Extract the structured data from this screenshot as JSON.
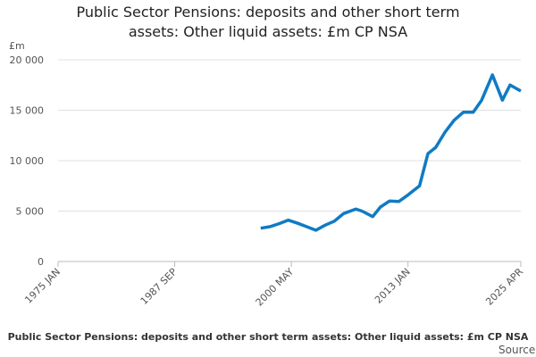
{
  "chart_data": {
    "type": "line",
    "title": [
      "Public Sector Pensions: deposits and other short term",
      "assets: Other liquid assets: £m CP NSA"
    ],
    "y_unit": "£m",
    "footer": "Public Sector Pensions: deposits and other short term assets: Other liquid assets: £m CP NSA",
    "source": "Source:",
    "x": [
      "1997 JAN",
      "1998 JAN",
      "1999 JAN",
      "2000 JAN",
      "2001 JAN",
      "2002 JAN",
      "2003 JAN",
      "2004 JAN",
      "2005 JAN",
      "2006 JAN",
      "2007 MAY",
      "2008 JAN",
      "2009 MAR",
      "2010 JAN",
      "2011 JAN",
      "2012 JAN",
      "2013 JAN",
      "2014 APR",
      "2015 MAR",
      "2016 JAN",
      "2017 JAN",
      "2018 JAN",
      "2019 JAN",
      "2020 FEB",
      "2021 JAN",
      "2022 MAR",
      "2023 APR",
      "2024 FEB",
      "2025 APR"
    ],
    "series": [
      {
        "name": "Other liquid assets",
        "color": "#0f7bc4",
        "values": [
          3300,
          3450,
          3750,
          4100,
          3800,
          3450,
          3100,
          3600,
          4000,
          4750,
          5200,
          5000,
          4450,
          5400,
          6000,
          5950,
          6600,
          7500,
          10700,
          11300,
          12800,
          14000,
          14800,
          14800,
          16000,
          18500,
          16000,
          17500,
          16900
        ]
      }
    ],
    "xlim": [
      "1975 JAN",
      "2025 APR"
    ],
    "xticks": [
      "1975 JAN",
      "1987 SEP",
      "2000 MAY",
      "2013 JAN",
      "2025 APR"
    ],
    "ylim": [
      0,
      20000
    ],
    "yticks": [
      0,
      {
        "value": 5000,
        "label": "5 000"
      },
      {
        "value": 10000,
        "label": "10 000"
      },
      {
        "value": 15000,
        "label": "15 000"
      },
      {
        "value": 20000,
        "label": "20 000"
      }
    ],
    "grid": true
  }
}
